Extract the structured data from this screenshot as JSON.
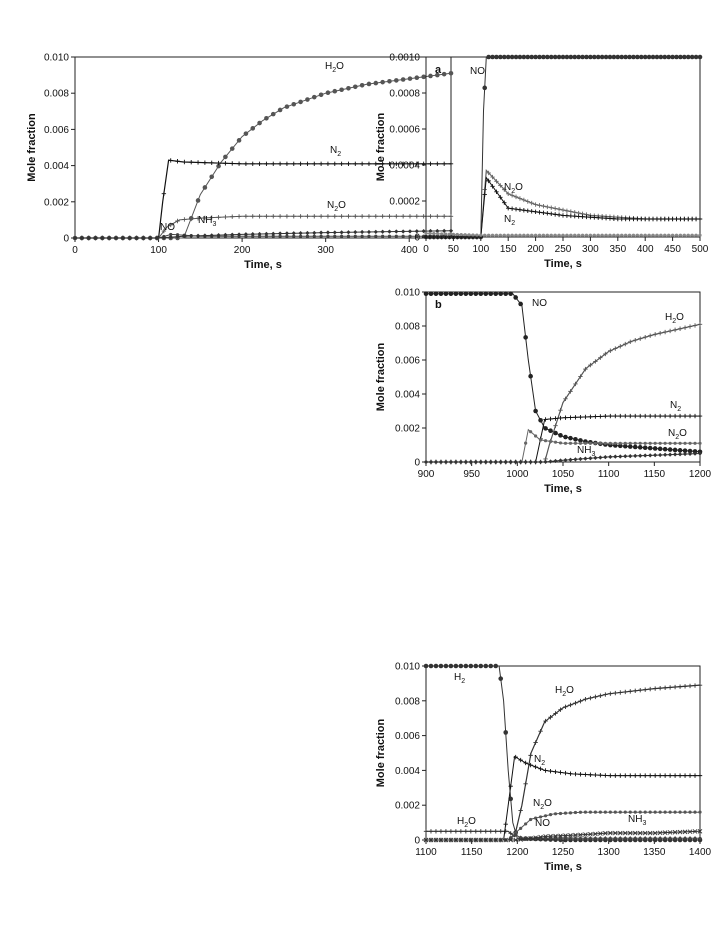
{
  "chart_data": [
    {
      "type": "line",
      "panel": "",
      "xlabel": "Time, s",
      "ylabel": "Mole fraction",
      "xlim": [
        0,
        450
      ],
      "ylim": [
        0,
        0.01
      ],
      "xticks": [
        0,
        100,
        200,
        300,
        400
      ],
      "yticks": [
        "0",
        "0.002",
        "0.004",
        "0.006",
        "0.008",
        "0.010"
      ],
      "series": [
        {
          "name": "H2O",
          "color": "#555555",
          "x": [
            0,
            100,
            130,
            150,
            175,
            200,
            225,
            250,
            300,
            350,
            400,
            450
          ],
          "y": [
            0,
            0,
            0,
            0.0024,
            0.0042,
            0.0056,
            0.0065,
            0.0072,
            0.008,
            0.0085,
            0.0088,
            0.0091
          ]
        },
        {
          "name": "N2",
          "color": "#111111",
          "x": [
            0,
            100,
            105,
            112,
            130,
            200,
            300,
            450
          ],
          "y": [
            0,
            0,
            0.002,
            0.0043,
            0.0042,
            0.0041,
            0.0041,
            0.0041
          ]
        },
        {
          "name": "N2O",
          "color": "#555555",
          "x": [
            0,
            100,
            110,
            125,
            150,
            200,
            300,
            450
          ],
          "y": [
            0,
            0,
            0.0006,
            0.001,
            0.0011,
            0.0012,
            0.0012,
            0.0012
          ]
        },
        {
          "name": "NO",
          "color": "#444444",
          "x": [
            0,
            100,
            115,
            150,
            200,
            300,
            450
          ],
          "y": [
            0,
            0,
            0.0002,
            0.0001,
            0.0001,
            0.0001,
            0.0001
          ]
        },
        {
          "name": "NH3",
          "color": "#333333",
          "x": [
            0,
            100,
            130,
            200,
            300,
            450
          ],
          "y": [
            0,
            0,
            0.0001,
            0.0002,
            0.0003,
            0.0004
          ]
        }
      ]
    },
    {
      "type": "line",
      "panel": "a",
      "xlabel": "Time, s",
      "ylabel": "Mole fraction",
      "xlim": [
        0,
        500
      ],
      "ylim": [
        0,
        0.001
      ],
      "xticks": [
        0,
        50,
        100,
        150,
        200,
        250,
        300,
        350,
        400,
        450,
        500
      ],
      "yticks": [
        "0",
        "0.0002",
        "0.0004",
        "0.0006",
        "0.0008",
        "0.0010"
      ],
      "series": [
        {
          "name": "NO",
          "color": "#333333",
          "x": [
            0,
            100,
            105,
            110,
            120,
            500
          ],
          "y": [
            0,
            0,
            0.0007,
            0.001,
            0.001,
            0.001
          ]
        },
        {
          "name": "N2O",
          "color": "#666666",
          "x": [
            0,
            100,
            110,
            150,
            200,
            250,
            300,
            350,
            400,
            450,
            500
          ],
          "y": [
            0,
            0,
            0.00037,
            0.00024,
            0.00018,
            0.00015,
            0.00012,
            0.00011,
            0.0001,
            0.0001,
            0.0001
          ]
        },
        {
          "name": "N2",
          "color": "#111111",
          "x": [
            0,
            100,
            110,
            150,
            200,
            250,
            300,
            350,
            400,
            450,
            500
          ],
          "y": [
            0,
            0,
            0.00033,
            0.00016,
            0.00014,
            0.00012,
            0.00011,
            0.0001,
            0.0001,
            0.0001,
            0.0001
          ]
        },
        {
          "name": "",
          "color": "#888888",
          "x": [
            0,
            100,
            150,
            200,
            300,
            400,
            500
          ],
          "y": [
            2e-05,
            1e-05,
            1e-05,
            1e-05,
            1e-05,
            1e-05,
            1e-05
          ]
        }
      ]
    },
    {
      "type": "line",
      "panel": "b",
      "xlabel": "Time, s",
      "ylabel": "Mole fraction",
      "xlim": [
        900,
        1200
      ],
      "ylim": [
        0,
        0.01
      ],
      "xticks": [
        900,
        950,
        1000,
        1050,
        1100,
        1150,
        1200
      ],
      "yticks": [
        "0",
        "0.002",
        "0.004",
        "0.006",
        "0.008",
        "0.010"
      ],
      "series": [
        {
          "name": "NO",
          "color": "#222222",
          "x": [
            900,
            960,
            995,
            1005,
            1012,
            1020,
            1030,
            1050,
            1075,
            1100,
            1150,
            1200
          ],
          "y": [
            0.0099,
            0.0099,
            0.0099,
            0.0092,
            0.006,
            0.003,
            0.002,
            0.0015,
            0.0012,
            0.001,
            0.0008,
            0.0006
          ]
        },
        {
          "name": "H2O",
          "color": "#555555",
          "x": [
            900,
            1030,
            1035,
            1050,
            1075,
            1100,
            1125,
            1150,
            1175,
            1200
          ],
          "y": [
            0,
            0,
            0.001,
            0.0035,
            0.0055,
            0.0065,
            0.0071,
            0.0075,
            0.0078,
            0.0081
          ]
        },
        {
          "name": "N2",
          "color": "#111111",
          "x": [
            900,
            1020,
            1030,
            1050,
            1100,
            1150,
            1200
          ],
          "y": [
            0,
            0,
            0.0025,
            0.0026,
            0.0027,
            0.0027,
            0.0027
          ]
        },
        {
          "name": "N2O",
          "color": "#666666",
          "x": [
            900,
            1005,
            1012,
            1025,
            1050,
            1100,
            1150,
            1200
          ],
          "y": [
            0,
            0,
            0.0019,
            0.0013,
            0.0011,
            0.0011,
            0.0011,
            0.0011
          ]
        },
        {
          "name": "NH3",
          "color": "#333333",
          "x": [
            900,
            1030,
            1050,
            1100,
            1150,
            1200
          ],
          "y": [
            0,
            0,
            0.0001,
            0.0003,
            0.0004,
            0.0005
          ]
        }
      ]
    },
    {
      "type": "line",
      "panel": "",
      "xlabel": "Time, s",
      "ylabel": "Mole fraction",
      "xlim": [
        1100,
        1400
      ],
      "ylim": [
        0,
        0.01
      ],
      "xticks": [
        1100,
        1150,
        1200,
        1250,
        1300,
        1350,
        1400
      ],
      "yticks": [
        "0",
        "0.002",
        "0.004",
        "0.006",
        "0.008",
        "0.010"
      ],
      "series": [
        {
          "name": "H2",
          "color": "#333333",
          "x": [
            1100,
            1150,
            1180,
            1185,
            1190,
            1195,
            1200,
            1250,
            1300,
            1400
          ],
          "y": [
            0.01,
            0.01,
            0.01,
            0.008,
            0.004,
            0.001,
            0.0001,
            0,
            0,
            0
          ]
        },
        {
          "name": "H2O",
          "color": "#333333",
          "x": [
            1100,
            1180,
            1190,
            1197,
            1205,
            1215,
            1230,
            1250,
            1275,
            1300,
            1350,
            1400
          ],
          "y": [
            0.0005,
            0.0005,
            0.0005,
            0.0002,
            0.002,
            0.005,
            0.0068,
            0.0076,
            0.0081,
            0.0084,
            0.0087,
            0.0089
          ]
        },
        {
          "name": "N2",
          "color": "#111111",
          "x": [
            1100,
            1185,
            1190,
            1197,
            1210,
            1230,
            1260,
            1300,
            1350,
            1400
          ],
          "y": [
            0,
            0,
            0.002,
            0.0048,
            0.0044,
            0.004,
            0.0038,
            0.0037,
            0.0037,
            0.0037
          ]
        },
        {
          "name": "N2O",
          "color": "#555555",
          "x": [
            1100,
            1190,
            1200,
            1215,
            1240,
            1270,
            1300,
            1350,
            1400
          ],
          "y": [
            0,
            0,
            0.0005,
            0.0012,
            0.0015,
            0.0016,
            0.0016,
            0.0016,
            0.0016
          ]
        },
        {
          "name": "NO",
          "color": "#444444",
          "x": [
            1100,
            1190,
            1198,
            1205,
            1220,
            1300,
            1400
          ],
          "y": [
            0,
            0,
            0.0003,
            0.0001,
            0.0001,
            0.0001,
            0.0001
          ]
        },
        {
          "name": "NH3",
          "color": "#333333",
          "x": [
            1100,
            1200,
            1230,
            1270,
            1300,
            1350,
            1400
          ],
          "y": [
            0,
            0,
            0.0002,
            0.0003,
            0.0004,
            0.0004,
            0.0005
          ]
        }
      ]
    }
  ],
  "labels": {
    "chart1": {
      "h2o": "H",
      "h2o_sub": "2",
      "h2o_end": "O",
      "n2": "N",
      "n2_sub": "2",
      "n2o": "N",
      "n2o_sub": "2",
      "n2o_end": "O",
      "nh3": "NH",
      "nh3_sub": "3",
      "no": "NO"
    },
    "chart2": {
      "no": "NO",
      "n2o": "N",
      "n2o_sub": "2",
      "n2o_end": "O",
      "n2": "N",
      "n2_sub": "2"
    },
    "chart3": {
      "no": "NO",
      "h2o": "H",
      "h2o_sub": "2",
      "h2o_end": "O",
      "n2": "N",
      "n2_sub": "2",
      "n2o": "N",
      "n2o_sub": "2",
      "n2o_end": "O",
      "nh3": "NH",
      "nh3_sub": "3"
    },
    "chart4": {
      "h2": "H",
      "h2_sub": "2",
      "h2o": "H",
      "h2o_sub": "2",
      "h2o_end": "O",
      "n2": "N",
      "n2_sub": "2",
      "n2o": "N",
      "n2o_sub": "2",
      "n2o_end": "O",
      "no": "NO",
      "nh3": "NH",
      "nh3_sub": "3",
      "h2o_low": "H",
      "h2o_low_sub": "2",
      "h2o_low_end": "O"
    }
  }
}
